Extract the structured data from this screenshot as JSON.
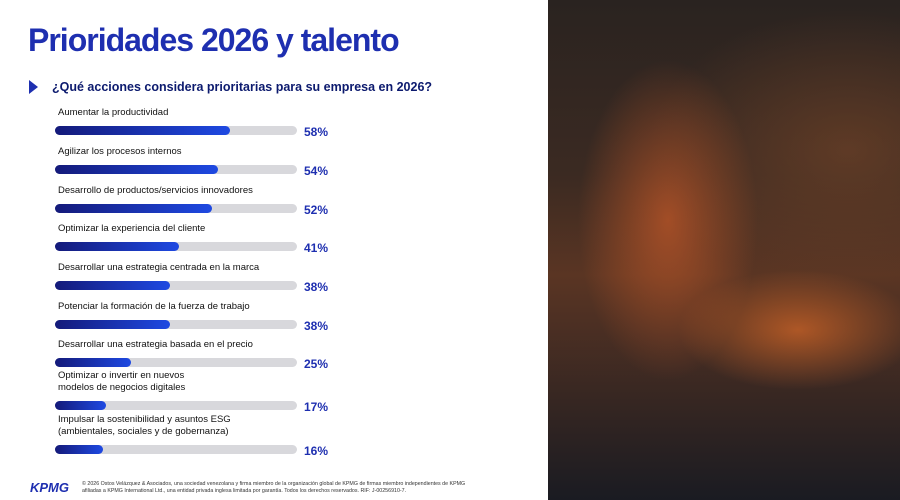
{
  "header": {
    "title": "Prioridades 2026 y talento",
    "subtitle": "¿Qué acciones considera prioritarias para su empresa en 2026?"
  },
  "chart_data": {
    "type": "hbar",
    "categories": [
      "Aumentar la productividad",
      "Agilizar los procesos internos",
      "Desarrollo de productos/servicios innovadores",
      "Optimizar la experiencia del cliente",
      "Desarrollar una estrategia centrada en la marca",
      "Potenciar la formación de la fuerza de trabajo",
      "Desarrollar una estrategia basada en el precio",
      "Optimizar o invertir en nuevos\nmodelos de negocios digitales",
      "Impulsar la sostenibilidad y asuntos ESG\n(ambientales, sociales y de gobernanza)"
    ],
    "values": [
      58,
      54,
      52,
      41,
      38,
      38,
      25,
      17,
      16
    ],
    "value_labels": [
      "58%",
      "54%",
      "52%",
      "41%",
      "38%",
      "38%",
      "25%",
      "17%",
      "16%"
    ],
    "xlim": [
      0,
      80
    ],
    "color": "#1e3fd0"
  },
  "footer": {
    "logo": "KPMG",
    "legal": "© 2026 Ostos Velázquez & Asociados, una sociedad venezolana y firma miembro de la organización global de KPMG de firmas miembro independientes de KPMG afiliadas a KPMG International Ltd., una entidad privada inglesa limitada por garantía. Todos los derechos reservados. RIF: J-00256910-7."
  }
}
